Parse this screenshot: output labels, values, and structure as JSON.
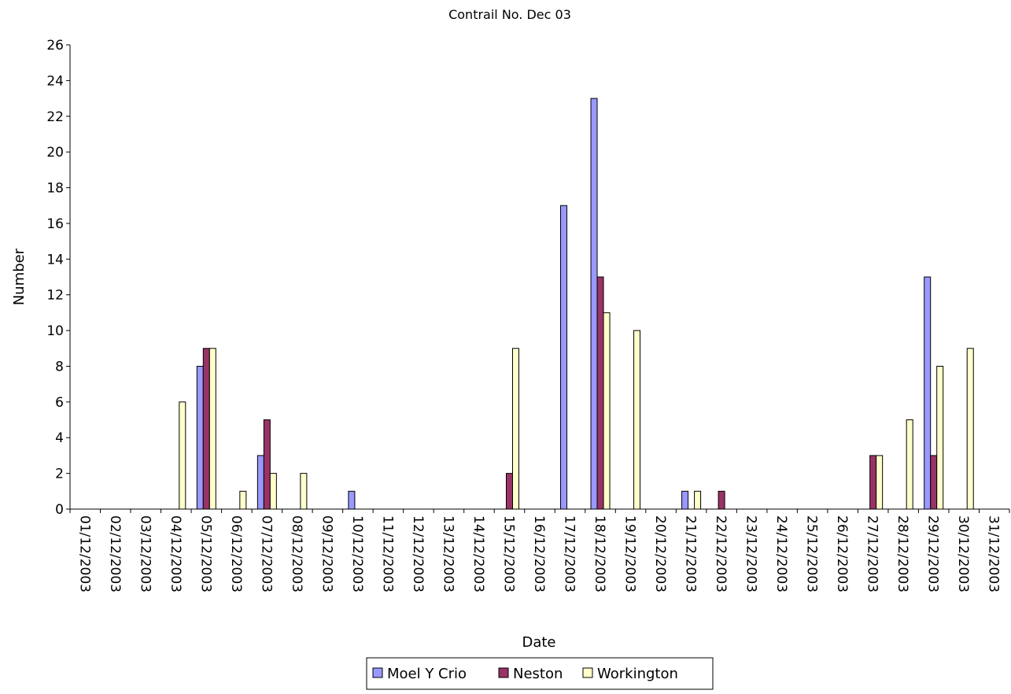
{
  "chart_data": {
    "type": "bar",
    "title": "Contrail No. Dec 03",
    "xlabel": "Date",
    "ylabel": "Number",
    "ylim": [
      0,
      26
    ],
    "yticks": [
      0,
      2,
      4,
      6,
      8,
      10,
      12,
      14,
      16,
      18,
      20,
      22,
      24,
      26
    ],
    "grid": false,
    "legend_position": "bottom",
    "categories": [
      "01/12/2003",
      "02/12/2003",
      "03/12/2003",
      "04/12/2003",
      "05/12/2003",
      "06/12/2003",
      "07/12/2003",
      "08/12/2003",
      "09/12/2003",
      "10/12/2003",
      "11/12/2003",
      "12/12/2003",
      "13/12/2003",
      "14/12/2003",
      "15/12/2003",
      "16/12/2003",
      "17/12/2003",
      "18/12/2003",
      "19/12/2003",
      "20/12/2003",
      "21/12/2003",
      "22/12/2003",
      "23/12/2003",
      "24/12/2003",
      "25/12/2003",
      "26/12/2003",
      "27/12/2003",
      "28/12/2003",
      "29/12/2003",
      "30/12/2003",
      "31/12/2003"
    ],
    "series": [
      {
        "name": "Moel Y Crio",
        "color": "#9999ff",
        "values": [
          0,
          0,
          0,
          0,
          8,
          0,
          3,
          0,
          0,
          1,
          0,
          0,
          0,
          0,
          0,
          0,
          17,
          23,
          0,
          0,
          1,
          0,
          0,
          0,
          0,
          0,
          0,
          0,
          13,
          0,
          0
        ]
      },
      {
        "name": "Neston",
        "color": "#993366",
        "values": [
          0,
          0,
          0,
          0,
          9,
          0,
          5,
          0,
          0,
          0,
          0,
          0,
          0,
          0,
          2,
          0,
          0,
          13,
          0,
          0,
          0,
          1,
          0,
          0,
          0,
          0,
          3,
          0,
          3,
          0,
          0
        ]
      },
      {
        "name": "Workington",
        "color": "#ffffcc",
        "values": [
          0,
          0,
          0,
          6,
          9,
          1,
          2,
          2,
          0,
          0,
          0,
          0,
          0,
          0,
          9,
          0,
          0,
          11,
          10,
          0,
          1,
          0,
          0,
          0,
          0,
          0,
          3,
          5,
          8,
          9,
          0
        ]
      }
    ]
  }
}
